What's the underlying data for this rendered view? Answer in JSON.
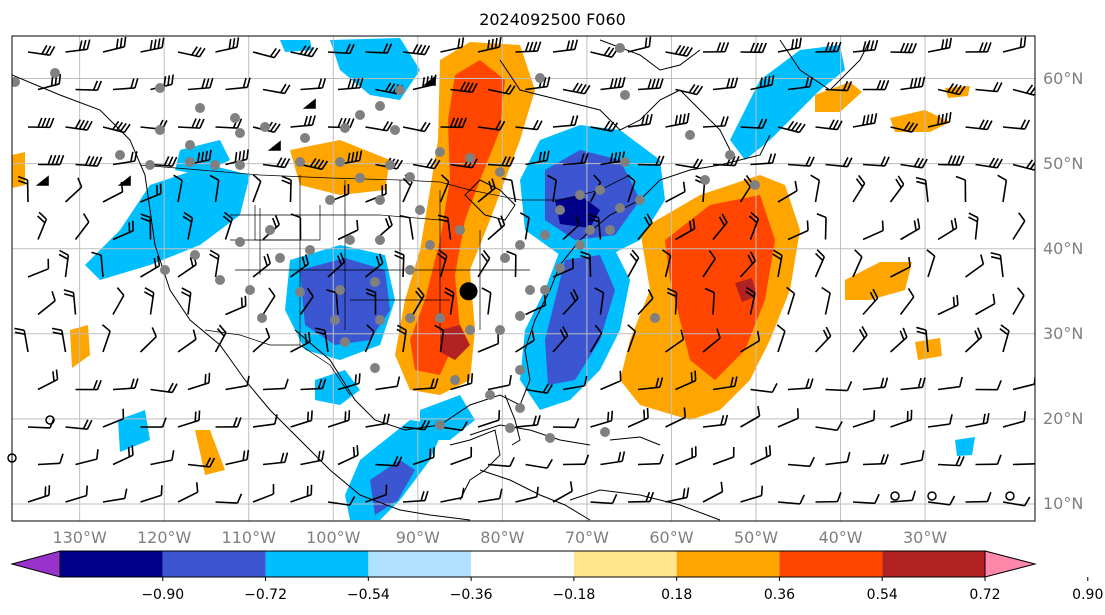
{
  "title": "2024092500 F060",
  "map": {
    "lon_range": [
      -138,
      -17
    ],
    "lat_range": [
      8,
      65
    ],
    "grid_color": "#bfbfbf",
    "lat_labels": [
      "60°N",
      "50°N",
      "40°N",
      "30°N",
      "20°N",
      "10°N"
    ],
    "lon_labels": [
      "130°W",
      "120°W",
      "110°W",
      "100°W",
      "90°W",
      "80°W",
      "70°W",
      "60°W",
      "50°W",
      "40°W",
      "30°W"
    ]
  },
  "colorbar": {
    "tick_labels": [
      "−0.90",
      "−0.72",
      "−0.54",
      "−0.36",
      "−0.18",
      "0.18",
      "0.36",
      "0.54",
      "0.72",
      "0.90"
    ],
    "colors": [
      "#9932cc",
      "#00008b",
      "#3c55d0",
      "#00bfff",
      "#b0e0ff",
      "#ffffff",
      "#ffe68c",
      "#ffa500",
      "#ff4500",
      "#b22222",
      "#ff88aa"
    ]
  },
  "marker": {
    "lon": -84,
    "lat": 35,
    "label": "large-black-dot"
  },
  "icons": [
    "wind-barb-icon",
    "station-dot-icon",
    "calm-circle-icon"
  ]
}
